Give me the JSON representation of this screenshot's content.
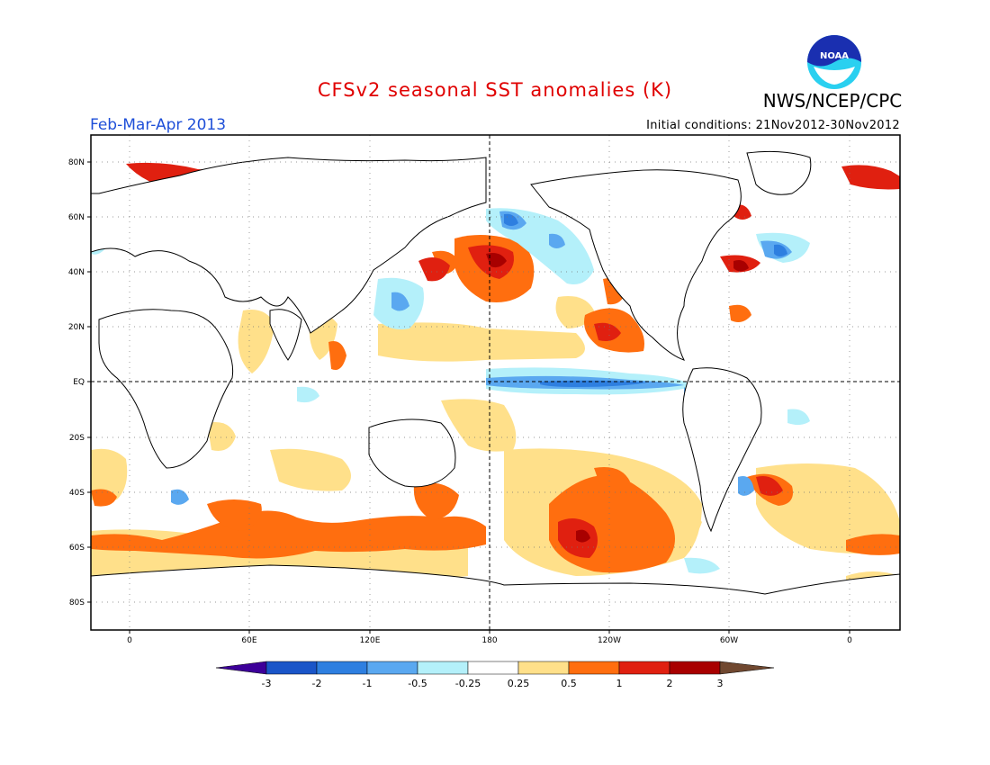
{
  "header": {
    "title": "CFSv2 seasonal SST anomalies (K)",
    "agency": "NWS/NCEP/CPC",
    "season": "Feb-Mar-Apr 2013",
    "initial_conditions": "Initial conditions: 21Nov2012-30Nov2012",
    "logo_text": "NOAA"
  },
  "map": {
    "projection": "cylindrical equidistant",
    "lat_labels": [
      "80N",
      "60N",
      "40N",
      "20N",
      "EQ",
      "20S",
      "40S",
      "60S",
      "80S"
    ],
    "lon_labels": [
      "0",
      "60E",
      "120E",
      "180",
      "120W",
      "60W",
      "0"
    ],
    "reference_lines": [
      "equator dashed",
      "180 meridian dashed"
    ]
  },
  "colorbar": {
    "labels": [
      "-3",
      "-2",
      "-1",
      "-0.5",
      "-0.25",
      "0.25",
      "0.5",
      "1",
      "2",
      "3"
    ],
    "colors": [
      "#3d0099",
      "#1a55c8",
      "#2e7fe0",
      "#5aa8f0",
      "#b4f0fa",
      "#ffffff",
      "#ffe08a",
      "#ff6e0f",
      "#e02010",
      "#a80000",
      "#704830"
    ]
  }
}
